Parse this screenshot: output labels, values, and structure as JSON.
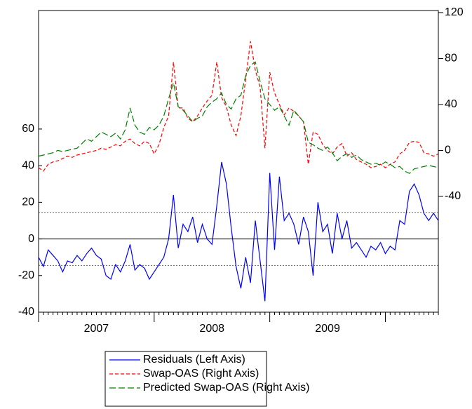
{
  "chart_data": {
    "type": "line",
    "categories": [
      null,
      null,
      null,
      null,
      null,
      null,
      null,
      null,
      null,
      null,
      null,
      null,
      "2007",
      null,
      null,
      null,
      null,
      null,
      null,
      null,
      null,
      null,
      null,
      null,
      null,
      null,
      null,
      null,
      null,
      null,
      null,
      null,
      null,
      null,
      null,
      null,
      "2008",
      null,
      null,
      null,
      null,
      null,
      null,
      null,
      null,
      null,
      null,
      null,
      null,
      null,
      null,
      null,
      null,
      null,
      null,
      null,
      null,
      null,
      null,
      null,
      "2009",
      null,
      null,
      null,
      null,
      null,
      null,
      null,
      null,
      null,
      null,
      null,
      null,
      null,
      null,
      null,
      null,
      null,
      null,
      null,
      null,
      null,
      null,
      null
    ],
    "series": [
      {
        "name": "Residuals (Left Axis)",
        "color": "#0000ff",
        "line_style": "solid",
        "axis": "y",
        "values": [
          -10,
          -15,
          -6,
          -9,
          -12,
          -18,
          -12,
          -13,
          -9,
          -12,
          -8,
          -5,
          -9,
          -11,
          -20,
          -22,
          -14,
          -18,
          -12,
          -3,
          -17,
          -14,
          -16,
          -22,
          -18,
          -14,
          -10,
          0,
          24,
          -5,
          8,
          4,
          12,
          -2,
          8,
          0,
          -3,
          18,
          42,
          30,
          6,
          -15,
          -27,
          -10,
          -24,
          10,
          -12,
          -34,
          36,
          -6,
          34,
          10,
          14,
          8,
          -3,
          12,
          4,
          -20,
          20,
          4,
          8,
          -8,
          14,
          0,
          10,
          -5,
          -2,
          -6,
          -10,
          -4,
          -6,
          -2,
          -8,
          -4,
          -6,
          10,
          8,
          26,
          30,
          24,
          14,
          10,
          14,
          10
        ]
      },
      {
        "name": "Swap-OAS (Right Axis)",
        "color": "#ff0000",
        "line_style": "dashed",
        "axis": "y2",
        "values": [
          -15,
          -18,
          -12,
          -10,
          -9,
          -7,
          -5,
          -6,
          -4,
          -3,
          -2,
          -1,
          0,
          2,
          1,
          3,
          5,
          4,
          8,
          10,
          6,
          4,
          8,
          6,
          -3,
          5,
          20,
          30,
          77,
          37,
          37,
          28,
          25,
          30,
          37,
          43,
          48,
          77,
          46,
          38,
          22,
          13,
          30,
          62,
          95,
          70,
          55,
          2,
          68,
          50,
          40,
          31,
          37,
          34,
          30,
          25,
          -12,
          16,
          14,
          5,
          0,
          -3,
          3,
          6,
          -5,
          -2,
          -8,
          -10,
          -12,
          -15,
          -14,
          -12,
          -15,
          -12,
          -10,
          -3,
          0,
          7,
          8,
          7,
          -2,
          -3,
          -5,
          -3
        ]
      },
      {
        "name": "Predicted Swap-OAS (Right Axis)",
        "color": "#008000",
        "line_style": "longdash",
        "axis": "y2",
        "values": [
          -5,
          -4,
          -3,
          -2,
          0,
          -1,
          0,
          1,
          2,
          6,
          10,
          8,
          12,
          16,
          14,
          12,
          15,
          10,
          18,
          37,
          22,
          16,
          14,
          20,
          18,
          22,
          30,
          45,
          59,
          38,
          35,
          30,
          25,
          28,
          30,
          38,
          42,
          45,
          50,
          40,
          36,
          45,
          48,
          65,
          74,
          77,
          60,
          45,
          40,
          35,
          38,
          30,
          22,
          35,
          30,
          25,
          7,
          5,
          2,
          0,
          3,
          -2,
          -9,
          -5,
          -3,
          -6,
          -4,
          -8,
          -10,
          -12,
          -11,
          -13,
          -10,
          -12,
          -15,
          -14,
          -18,
          -20,
          -16,
          -15,
          -14,
          -13,
          -14,
          -15
        ]
      }
    ],
    "ylim": [
      -40,
      124.7
    ],
    "yticks": [
      -40,
      -20,
      0,
      20,
      40,
      60
    ],
    "y2lim": [
      -140.8,
      121.8
    ],
    "y2ticks": [
      -40,
      0,
      40,
      80,
      120
    ],
    "reference_lines": [
      {
        "value": 14.5,
        "style": "dotted"
      },
      {
        "value": 0,
        "style": "solid"
      },
      {
        "value": -14.5,
        "style": "dotted"
      }
    ],
    "legend": "bottom"
  }
}
